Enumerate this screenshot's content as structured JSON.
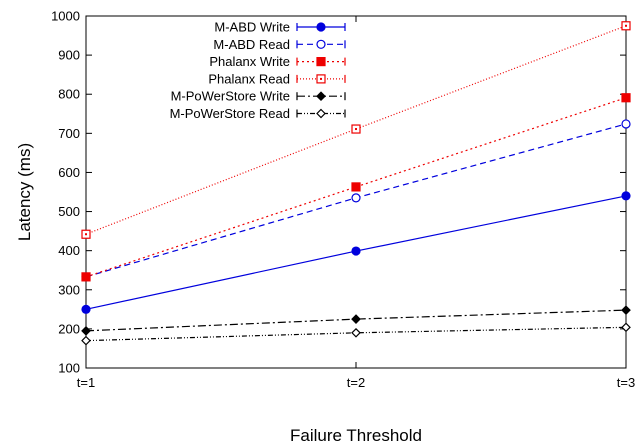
{
  "chart_data": {
    "type": "line",
    "xlabel": "Failure Threshold",
    "ylabel": "Latency (ms)",
    "categories": [
      "t=1",
      "t=2",
      "t=3"
    ],
    "ylim": [
      100,
      1000
    ],
    "yticks": [
      100,
      200,
      300,
      400,
      500,
      600,
      700,
      800,
      900,
      1000
    ],
    "grid": false,
    "legend": "top-left",
    "series": [
      {
        "name": "M-ABD Write",
        "values": [
          250,
          399,
          540
        ],
        "color": "#0000dd",
        "dash": "",
        "marker": "filled-circle"
      },
      {
        "name": "M-ABD Read",
        "values": [
          333,
          535,
          724
        ],
        "color": "#0000dd",
        "dash": "6,4",
        "marker": "open-circle"
      },
      {
        "name": "Phalanx Write",
        "values": [
          333,
          563,
          791
        ],
        "color": "#ee0000",
        "dash": "2,3",
        "marker": "filled-square"
      },
      {
        "name": "Phalanx Read",
        "values": [
          442,
          711,
          975
        ],
        "color": "#ee0000",
        "dash": "1,2",
        "marker": "open-square"
      },
      {
        "name": "M-PoWerStore Write",
        "values": [
          195,
          225,
          248
        ],
        "color": "#000000",
        "dash": "8,3,2,3",
        "marker": "filled-diamond"
      },
      {
        "name": "M-PoWerStore Read",
        "values": [
          170,
          190,
          204
        ],
        "color": "#000000",
        "dash": "5,2,1,2,1,2",
        "marker": "open-diamond"
      }
    ]
  }
}
